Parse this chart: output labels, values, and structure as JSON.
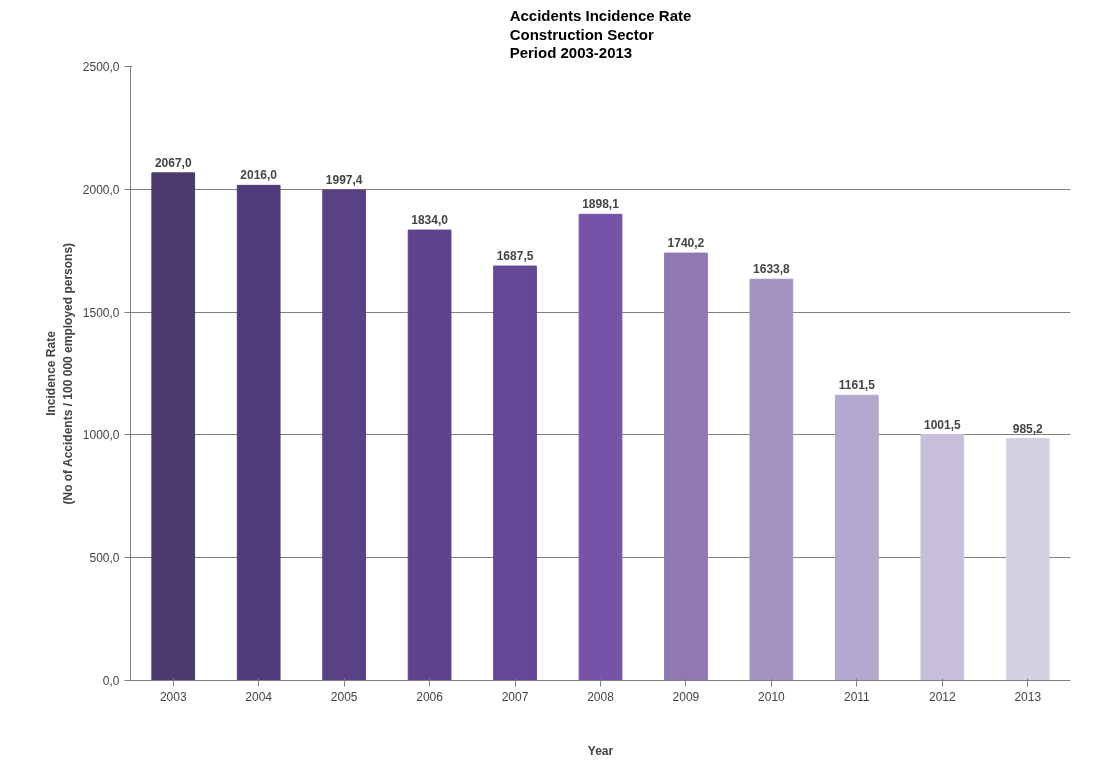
{
  "chart_data": {
    "type": "bar",
    "title": "Accidents Incidence Rate\nConstruction Sector\nPeriod 2003-2013",
    "xlabel": "Year",
    "ylabel": "Incidence Rate\n(No of Accidents / 100 000 employed persons)",
    "categories": [
      "2003",
      "2004",
      "2005",
      "2006",
      "2007",
      "2008",
      "2009",
      "2010",
      "2011",
      "2012",
      "2013"
    ],
    "values": [
      2067.0,
      2016.0,
      1997.4,
      1834.0,
      1687.5,
      1898.1,
      1740.2,
      1633.8,
      1161.5,
      1001.5,
      985.2
    ],
    "value_labels": [
      "2067,0",
      "2016,0",
      "1997,4",
      "1834,0",
      "1687,5",
      "1898,1",
      "1740,2",
      "1633,8",
      "1161,5",
      "1001,5",
      "985,2"
    ],
    "colors": [
      "#4b3a6e",
      "#523b7a",
      "#5a4085",
      "#5e438c",
      "#644796",
      "#7652a8",
      "#8f78b4",
      "#a192c0",
      "#b3a8cd",
      "#c8c0da",
      "#d6d0e3"
    ],
    "ylim": [
      0,
      2500
    ],
    "yticks": [
      {
        "value": 0,
        "label": "0,0"
      },
      {
        "value": 500,
        "label": "500,0"
      },
      {
        "value": 1000,
        "label": "1000,0"
      },
      {
        "value": 1500,
        "label": "1500,0"
      },
      {
        "value": 2000,
        "label": "2000,0"
      },
      {
        "value": 2500,
        "label": "2500,0"
      }
    ],
    "grid": "y"
  }
}
